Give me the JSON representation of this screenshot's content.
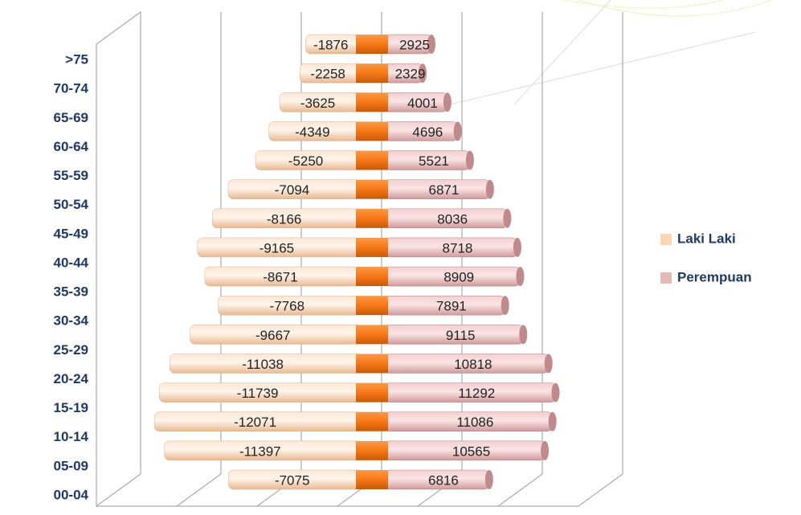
{
  "chart_data": {
    "type": "pyramid",
    "categories": [
      ">75",
      "70-74",
      "65-69",
      "60-64",
      "55-59",
      "50-54",
      "45-49",
      "40-44",
      "35-39",
      "30-34",
      "25-29",
      "20-24",
      "15-19",
      "10-14",
      "05-09",
      "00-04"
    ],
    "series": [
      {
        "name": "Laki Laki",
        "color": "#fcd5b4",
        "values": [
          -1876,
          -2258,
          -3625,
          -4349,
          -5250,
          -7094,
          -8166,
          -9165,
          -8671,
          -7768,
          -9667,
          -11038,
          -11739,
          -12071,
          -11397,
          -7075
        ]
      },
      {
        "name": "Perempuan",
        "color": "#e6b9b8",
        "values": [
          2925,
          2329,
          4001,
          4696,
          5521,
          6871,
          8036,
          8718,
          8909,
          7891,
          9115,
          10818,
          11292,
          11086,
          10565,
          6816
        ]
      }
    ],
    "xlim": [
      -13000,
      13000
    ],
    "legend": "right"
  }
}
